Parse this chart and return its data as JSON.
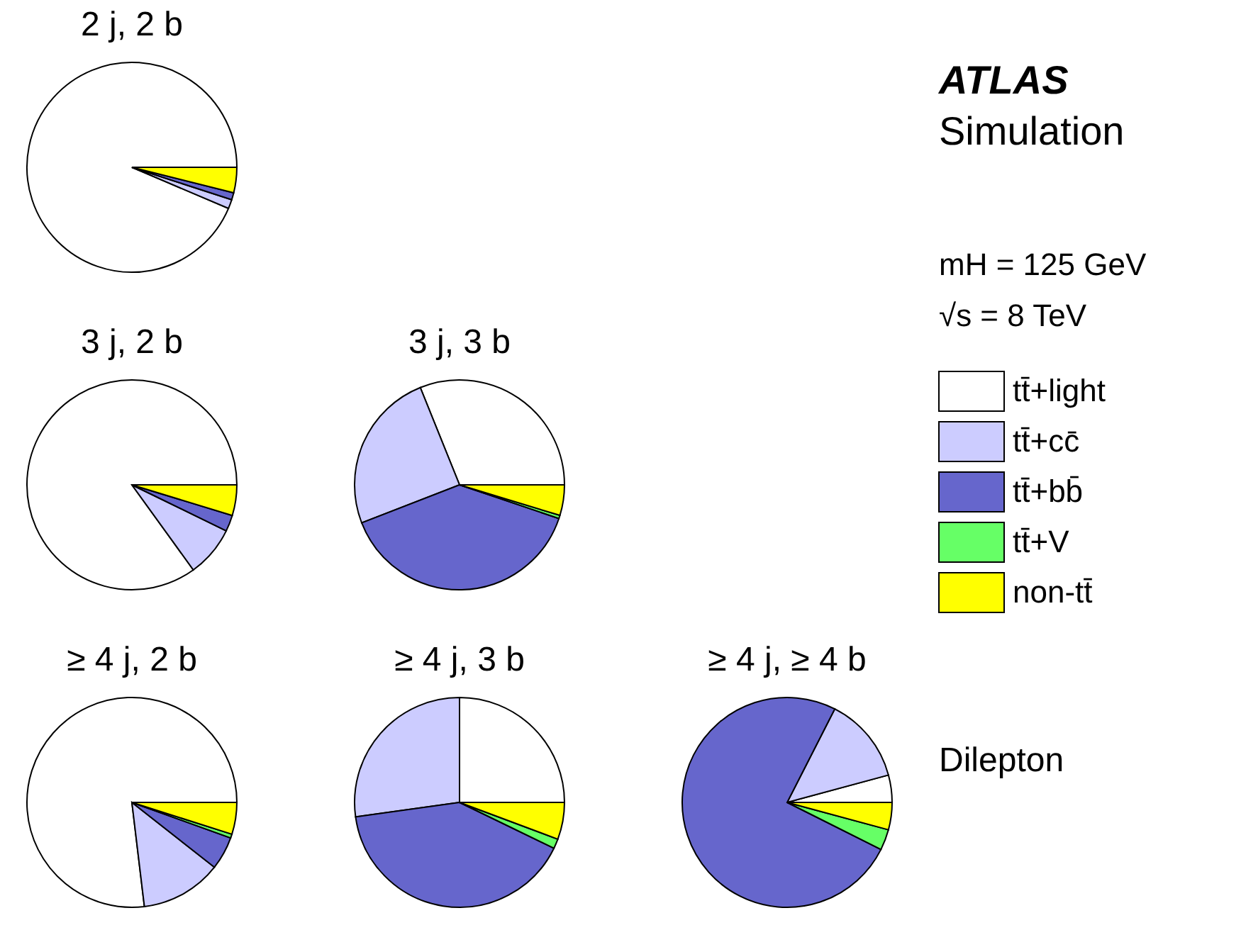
{
  "chart_data": [
    {
      "type": "pie",
      "title": "2 j, 2 b",
      "categories": [
        "tt̄+light",
        "tt̄+cc̄",
        "tt̄+bb̄",
        "tt̄+V",
        "non-tt̄"
      ],
      "colors": [
        "#ffffff",
        "#ccccff",
        "#6666cc",
        "#66ff66",
        "#ffff00"
      ],
      "values": [
        93.4,
        1.4,
        1.1,
        null,
        3.9
      ],
      "legend": "right"
    },
    {
      "type": "pie",
      "title": "3 j, 2 b",
      "categories": [
        null,
        null,
        null,
        null,
        null
      ],
      "colors": [
        "#ffffff",
        "#ccccff",
        "#6666cc",
        "#66ff66",
        "#ffff00"
      ],
      "values": [
        84.7,
        7.8,
        2.5,
        null,
        4.7
      ]
    },
    {
      "type": "pie",
      "title": "3 j, 3 b",
      "categories": [
        null,
        null,
        null,
        null,
        null
      ],
      "colors": [
        "#ffffff",
        "#ccccff",
        "#6666cc",
        "#66ff66",
        "#ffff00"
      ],
      "values": [
        31.1,
        24.8,
        38.9,
        0.5,
        4.7
      ]
    },
    {
      "type": "pie",
      "title": "≥ 4 j, 2 b",
      "categories": [
        null,
        null,
        null,
        null,
        null
      ],
      "colors": [
        "#ffffff",
        "#ccccff",
        "#6666cc",
        "#66ff66",
        "#ffff00"
      ],
      "values": [
        76.9,
        12.5,
        5.1,
        0.6,
        4.9
      ]
    },
    {
      "type": "pie",
      "title": "≥ 4 j, 3 b",
      "categories": [
        null,
        null,
        null,
        null,
        null
      ],
      "colors": [
        "#ffffff",
        "#ccccff",
        "#6666cc",
        "#66ff66",
        "#ffff00"
      ],
      "values": [
        25.0,
        27.2,
        40.6,
        1.5,
        5.7
      ]
    },
    {
      "type": "pie",
      "title": "≥ 4 j, ≥ 4 b",
      "categories": [
        null,
        null,
        null,
        null,
        null
      ],
      "colors": [
        "#ffffff",
        "#ccccff",
        "#6666cc",
        "#66ff66",
        "#ffff00"
      ],
      "values": [
        4.2,
        13.3,
        75.1,
        3.2,
        4.2
      ]
    },
    {
      "type": "other",
      "annotations": [
        "ATLAS",
        "Simulation",
        "mH = 125 GeV",
        "√s = 8 TeV",
        "Dilepton"
      ]
    }
  ]
}
